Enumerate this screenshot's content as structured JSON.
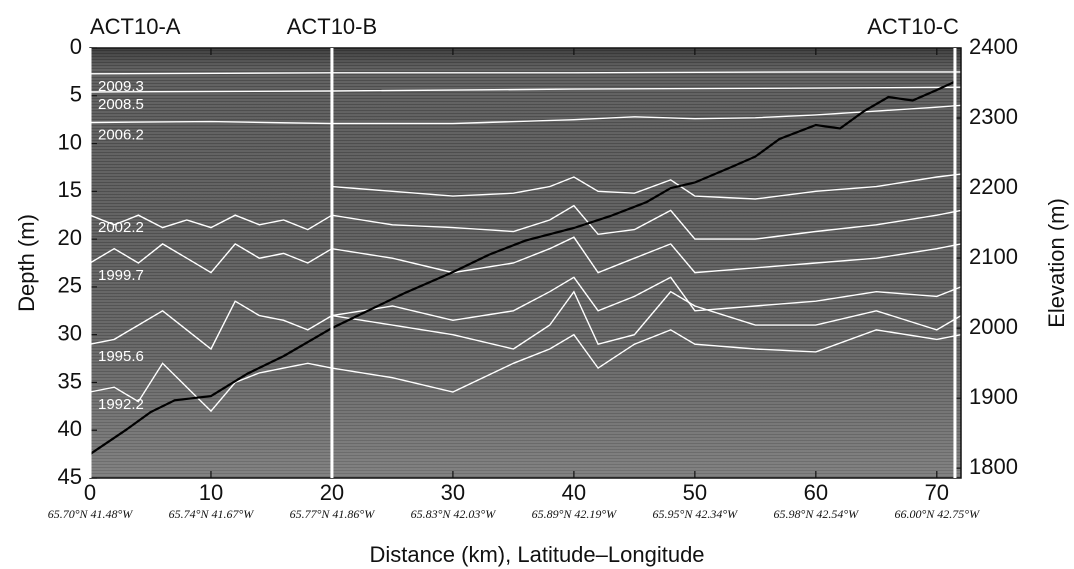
{
  "chart_data": {
    "type": "line",
    "xlabel": "Distance (km), Latitude–Longitude",
    "ylabel": "Depth (m)",
    "y2label": "Elevation (m)",
    "xlim": [
      0,
      72
    ],
    "xticks": [
      0,
      10,
      20,
      30,
      40,
      50,
      60,
      70
    ],
    "x_sublabels": [
      "65.70°N 41.48°W",
      "65.74°N 41.67°W",
      "65.77°N 41.86°W",
      "65.83°N 42.03°W",
      "65.89°N 42.19°W",
      "65.95°N 42.34°W",
      "65.98°N 42.54°W",
      "66.00°N 42.75°W"
    ],
    "ylim": [
      0,
      45
    ],
    "y_inverted": true,
    "yticks": [
      0,
      5,
      10,
      15,
      20,
      25,
      30,
      35,
      40,
      45
    ],
    "y2lim": [
      1786,
      2400
    ],
    "y2ticks": [
      1800,
      1900,
      2000,
      2100,
      2200,
      2300,
      2400
    ],
    "markers": [
      {
        "label": "ACT10-A",
        "x": 0
      },
      {
        "label": "ACT10-B",
        "x": 20
      },
      {
        "label": "ACT10-C",
        "x": 71.5
      }
    ],
    "series": [
      {
        "axis": "y2",
        "color": "#000000",
        "x": [
          0,
          3,
          5,
          7,
          10,
          13,
          16,
          20,
          23,
          26,
          30,
          33,
          36,
          40,
          43,
          46,
          48,
          50,
          53,
          55,
          57,
          60,
          62,
          64,
          66,
          68,
          70,
          71.5
        ],
        "values": [
          1820,
          1855,
          1880,
          1897,
          1903,
          1935,
          1960,
          2000,
          2025,
          2050,
          2080,
          2105,
          2125,
          2143,
          2160,
          2180,
          2200,
          2208,
          2230,
          2245,
          2270,
          2290,
          2285,
          2310,
          2330,
          2325,
          2340,
          2352
        ]
      },
      {
        "name": "2009.3",
        "color": "#ffffff",
        "x": [
          0,
          20,
          40,
          60,
          72
        ],
        "values": [
          2.7,
          2.6,
          2.6,
          2.5,
          2.5
        ]
      },
      {
        "name": "2008.5",
        "color": "#ffffff",
        "x": [
          0,
          20,
          40,
          60,
          72
        ],
        "values": [
          4.6,
          4.5,
          4.3,
          4.2,
          4.1
        ]
      },
      {
        "name": "2006.2",
        "color": "#ffffff",
        "x": [
          0,
          10,
          20,
          30,
          40,
          45,
          50,
          55,
          60,
          65,
          70,
          72
        ],
        "values": [
          7.8,
          7.7,
          7.9,
          7.9,
          7.5,
          7.2,
          7.4,
          7.3,
          7,
          6.6,
          6.2,
          6
        ]
      },
      {
        "color": "#ffffff",
        "x": [
          20,
          25,
          30,
          35,
          38,
          40,
          42,
          45,
          48,
          50,
          55,
          60,
          65,
          70,
          72
        ],
        "values": [
          14.5,
          15,
          15.5,
          15.2,
          14.5,
          13.5,
          15,
          15.2,
          13.8,
          15.5,
          15.8,
          15,
          14.5,
          13.5,
          13.2
        ]
      },
      {
        "name": "2002.2",
        "color": "#ffffff",
        "x": [
          0,
          2,
          4,
          6,
          8,
          10,
          12,
          14,
          16,
          18,
          20,
          25,
          30,
          35,
          38,
          40,
          42,
          45,
          48,
          50,
          55,
          60,
          65,
          70,
          72
        ],
        "values": [
          17.5,
          18.5,
          17.5,
          18.8,
          18,
          18.8,
          17.5,
          18.5,
          18,
          19,
          17.5,
          18.5,
          18.8,
          19.2,
          18,
          16.5,
          19.5,
          19,
          17,
          20,
          20,
          19.2,
          18.5,
          17.5,
          17
        ]
      },
      {
        "name": "1999.7",
        "color": "#ffffff",
        "x": [
          0,
          2,
          4,
          6,
          8,
          10,
          12,
          14,
          16,
          18,
          20,
          25,
          30,
          35,
          38,
          40,
          42,
          45,
          48,
          50,
          55,
          60,
          65,
          70,
          72
        ],
        "values": [
          22.5,
          21,
          22.5,
          20.5,
          22,
          23.5,
          20.5,
          22,
          21.5,
          22.5,
          21,
          22,
          23.5,
          22.5,
          21,
          19.8,
          23.5,
          22,
          20.5,
          23.5,
          23,
          22.5,
          22,
          21,
          20.5
        ]
      },
      {
        "color": "#ffffff",
        "x": [
          20,
          25,
          30,
          35,
          38,
          40,
          42,
          45,
          48,
          50,
          55,
          60,
          65,
          70,
          72
        ],
        "values": [
          28,
          27,
          28.5,
          27.5,
          25.5,
          24,
          27.5,
          26,
          24,
          27.5,
          27,
          26.5,
          25.5,
          26,
          25
        ]
      },
      {
        "name": "1995.6",
        "color": "#ffffff",
        "x": [
          0,
          2,
          4,
          6,
          8,
          10,
          12,
          14,
          16,
          18,
          20,
          25,
          30,
          35,
          38,
          40,
          42,
          45,
          48,
          50,
          55,
          60,
          65,
          70,
          72
        ],
        "values": [
          31,
          30.5,
          29,
          27.5,
          29.5,
          31.5,
          26.5,
          28,
          28.5,
          29.5,
          28,
          29,
          30,
          31.5,
          29,
          25.5,
          31,
          30,
          25.5,
          27,
          29,
          29,
          27.5,
          29.5,
          28
        ]
      },
      {
        "name": "1992.2",
        "color": "#ffffff",
        "x": [
          0,
          2,
          4,
          6,
          8,
          10,
          12,
          14,
          16,
          18,
          20,
          25,
          30,
          35,
          38,
          40,
          42,
          45,
          48,
          50,
          55,
          60,
          65,
          70,
          72
        ],
        "values": [
          36,
          35.5,
          37,
          33,
          35.5,
          38,
          35,
          34,
          33.5,
          33,
          33.5,
          34.5,
          36,
          33,
          31.5,
          30,
          33.5,
          31,
          29.5,
          31,
          31.5,
          31.8,
          29.5,
          30.5,
          30
        ]
      }
    ]
  }
}
